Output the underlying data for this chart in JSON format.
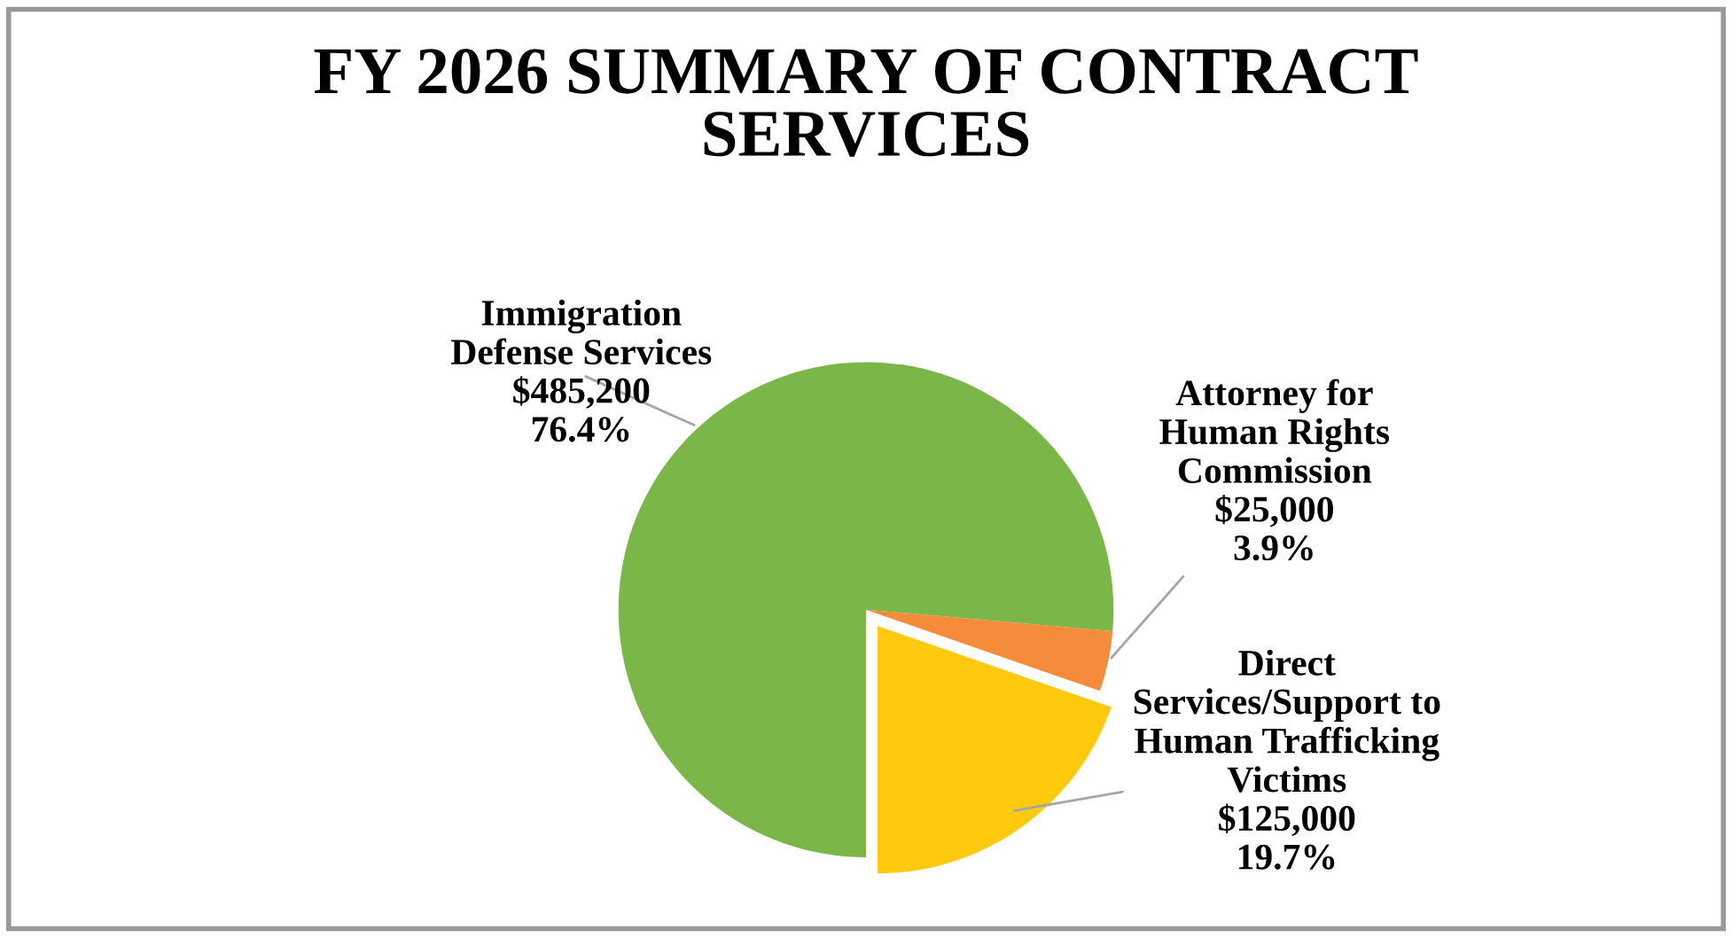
{
  "chart_data": {
    "type": "pie",
    "title": "FY 2026 SUMMARY OF CONTRACT\nSERVICES",
    "categories": [
      "Immigration\nDefense Services",
      "Attorney for\nHuman Rights\nCommission",
      "Direct\nServices/Support to\nHuman Trafficking\nVictims"
    ],
    "values": [
      485200,
      25000,
      125000
    ],
    "value_labels": [
      "$485,200\n76.4%",
      "$25,000\n3.9%",
      "$125,000\n19.7%"
    ],
    "colors": [
      "#7ab648",
      "#f58c3c",
      "#ffc90e"
    ],
    "legend": false
  }
}
